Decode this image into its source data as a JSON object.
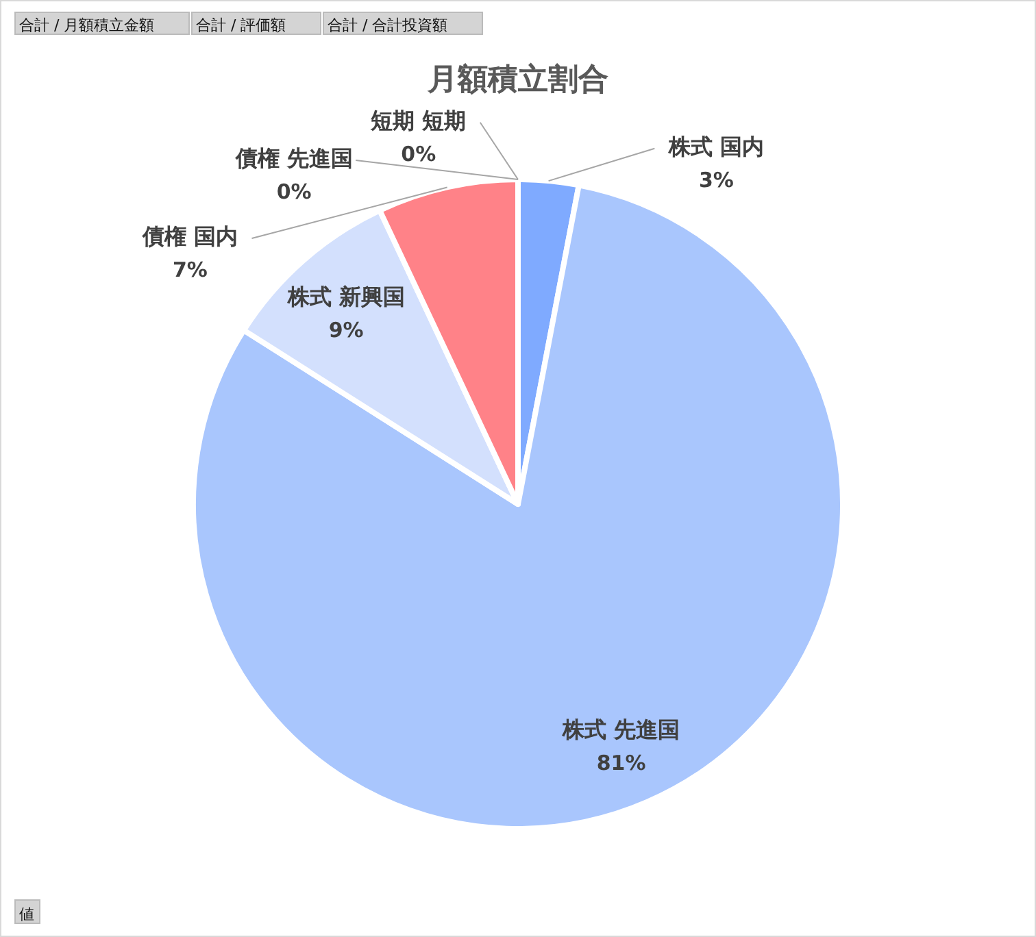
{
  "chart_data": {
    "type": "pie",
    "title": "月額積立割合",
    "categories": [
      "株式 国内",
      "株式 先進国",
      "株式 新興国",
      "債権 国内",
      "債権 先進国",
      "短期 短期"
    ],
    "values": [
      3,
      81,
      9,
      7,
      0,
      0
    ],
    "colors": [
      "#7faaff",
      "#a9c6fd",
      "#d3e0fd",
      "#ff8288",
      "#b0b0b0",
      "#c0c0c0"
    ],
    "value_labels": [
      "3%",
      "81%",
      "9%",
      "7%",
      "0%",
      "0%"
    ],
    "annotations": [
      "合計 / 月額積立金額",
      "合計 / 評価額",
      "合計 / 合計投資額",
      "値"
    ]
  }
}
